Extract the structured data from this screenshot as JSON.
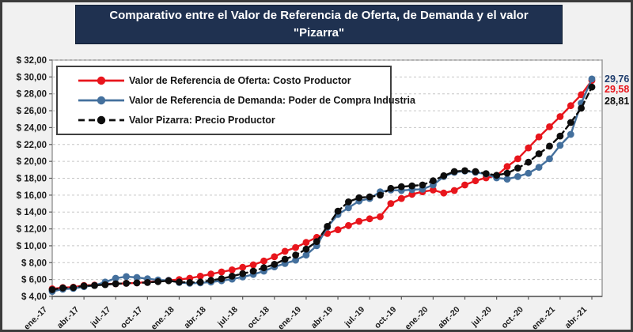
{
  "title": "Comparativo entre el Valor de Referencia de Oferta, de Demanda y el valor \"Pizarra\"",
  "end_labels": [
    {
      "text": "29,76",
      "color": "#1f3d6d",
      "series": "demanda"
    },
    {
      "text": "29,58",
      "color": "#e8151c",
      "series": "oferta"
    },
    {
      "text": "28,81",
      "color": "#0d0d0d",
      "series": "pizarra"
    }
  ],
  "chart_data": {
    "type": "line",
    "title": "Comparativo entre el Valor de Referencia de Oferta, de Demanda y el valor \"Pizarra\"",
    "x_tick_labels": [
      "ene.-17",
      "abr.-17",
      "jul.-17",
      "oct.-17",
      "ene.-18",
      "abr.-18",
      "jul.-18",
      "oct.-18",
      "ene.-19",
      "abr.-19",
      "jul.-19",
      "oct.-19",
      "ene.-20",
      "abr.-20",
      "jul.-20",
      "oct.-20",
      "ene.-21",
      "abr.-21"
    ],
    "y_tick_labels": [
      "$ 32,00",
      "$ 30,00",
      "$ 28,00",
      "$ 26,00",
      "$ 24,00",
      "$ 22,00",
      "$ 20,00",
      "$ 18,00",
      "$ 16,00",
      "$ 14,00",
      "$ 12,00",
      "$ 10,00",
      "$ 8,00",
      "$ 6,00",
      "$ 4,00"
    ],
    "ylim": [
      4,
      32
    ],
    "y_step": 2,
    "months_per_tick": 3,
    "grid": "horizontal-dashed",
    "legend_position": "top-left",
    "series": [
      {
        "name": "Valor de Referencia de Oferta: Costo Productor",
        "color": "#e8151c",
        "dash": null,
        "values": [
          4.9,
          5.05,
          5.1,
          5.3,
          5.35,
          5.45,
          5.5,
          5.55,
          5.6,
          5.7,
          5.8,
          5.9,
          6.0,
          6.15,
          6.4,
          6.65,
          6.9,
          7.15,
          7.45,
          7.75,
          8.2,
          8.7,
          9.35,
          9.8,
          10.4,
          11.0,
          11.45,
          11.9,
          12.4,
          12.9,
          13.2,
          13.45,
          15.0,
          15.6,
          16.1,
          16.4,
          16.6,
          16.25,
          16.55,
          17.2,
          17.7,
          18.05,
          18.3,
          19.4,
          20.3,
          21.6,
          22.9,
          24.1,
          25.3,
          26.6,
          27.9,
          29.58
        ]
      },
      {
        "name": "Valor de Referencia de Demanda: Poder de Compra Industria",
        "color": "#44709d",
        "dash": null,
        "values": [
          4.6,
          4.85,
          4.95,
          5.15,
          5.3,
          5.7,
          6.15,
          6.35,
          6.25,
          6.1,
          5.95,
          5.9,
          5.65,
          5.55,
          5.6,
          5.7,
          5.85,
          6.05,
          6.3,
          6.6,
          7.0,
          7.5,
          7.9,
          8.3,
          8.9,
          10.0,
          12.2,
          13.7,
          14.5,
          15.3,
          15.6,
          16.4,
          16.6,
          16.55,
          16.65,
          16.7,
          17.2,
          18.2,
          18.7,
          18.85,
          18.7,
          18.5,
          18.05,
          17.9,
          18.2,
          18.6,
          19.3,
          20.3,
          21.9,
          23.2,
          26.9,
          29.76
        ]
      },
      {
        "name": "Valor Pizarra: Precio Productor",
        "color": "#0d0d0d",
        "dash": "7 4.5",
        "values": [
          4.8,
          5.0,
          5.05,
          5.25,
          5.3,
          5.4,
          5.5,
          5.55,
          5.6,
          5.65,
          5.75,
          5.85,
          5.7,
          5.65,
          5.7,
          5.9,
          6.1,
          6.4,
          6.7,
          7.0,
          7.4,
          7.8,
          8.4,
          8.9,
          9.6,
          10.5,
          12.3,
          14.1,
          15.2,
          15.7,
          15.8,
          16.0,
          16.8,
          17.0,
          17.1,
          17.2,
          17.7,
          18.3,
          18.8,
          18.9,
          18.8,
          18.55,
          18.35,
          18.6,
          19.2,
          19.9,
          20.9,
          21.8,
          23.0,
          24.6,
          26.3,
          28.81
        ]
      }
    ]
  },
  "colors": {
    "page_bg": "#f1f1f1",
    "frame_border": "#3c3c3c",
    "title_bg": "#1f3150",
    "plot_bg": "#ffffff",
    "plot_border": "#9b9b9b",
    "gridline": "#c6c6c6",
    "axis": "#595959",
    "axis_text": "#1a1a1a"
  }
}
